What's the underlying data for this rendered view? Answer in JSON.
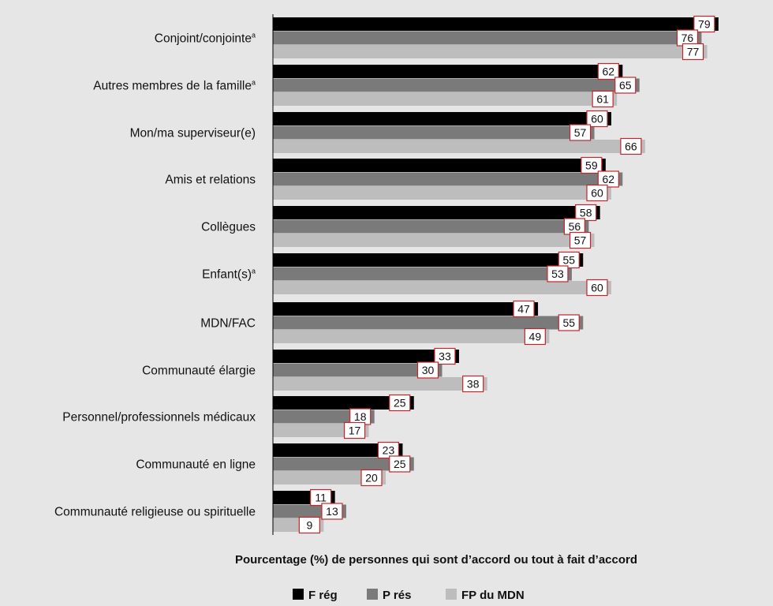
{
  "chart_data": {
    "type": "bar",
    "orientation": "horizontal",
    "categories": [
      "Conjoint/conjointe",
      "Autres membres de la famille",
      "Mon/ma superviseur(e)",
      "Amis et relations",
      "Collègues",
      "Enfant(s)",
      "MDN/FAC",
      "Communauté élargie",
      "Personnel/professionnels médicaux",
      "Communauté en ligne",
      "Communauté religieuse ou spirituelle"
    ],
    "category_superscripts": [
      "a",
      "a",
      "",
      "",
      "",
      "a",
      "",
      "",
      "",
      "",
      ""
    ],
    "series": [
      {
        "name": "F rég",
        "color": "#000000",
        "values": [
          79,
          62,
          60,
          59,
          58,
          55,
          47,
          33,
          25,
          23,
          11
        ]
      },
      {
        "name": "P rés",
        "color": "#7a7a7a",
        "values": [
          76,
          65,
          57,
          62,
          56,
          53,
          55,
          30,
          18,
          25,
          13
        ]
      },
      {
        "name": "FP du MDN",
        "color": "#bdbdbd",
        "values": [
          77,
          61,
          66,
          60,
          57,
          60,
          49,
          38,
          17,
          20,
          9
        ]
      }
    ],
    "xlabel": "Pourcentage (%) de personnes qui sont d’accord ou tout à fait d’accord",
    "xlim": [
      0,
      80
    ],
    "grid": false,
    "legend_position": "bottom",
    "value_label_border_color": "#c0272d"
  }
}
